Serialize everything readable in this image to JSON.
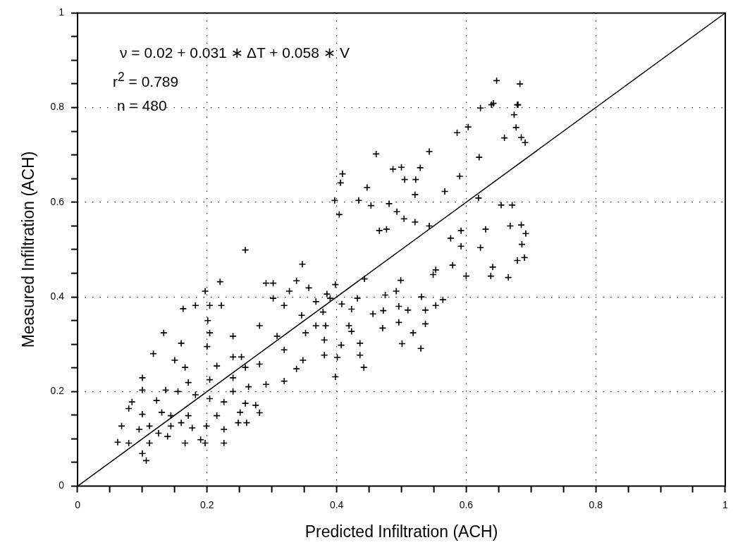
{
  "chart_data": {
    "type": "scatter",
    "xlabel": "Predicted Infiltration (ACH)",
    "ylabel": "Measured Infiltration (ACH)",
    "annotations": [
      "ν = 0.02 + 0.031 ∗ ΔT + 0.058 ∗ V",
      "r$^{2}$ = 0.789",
      "n = 480"
    ],
    "xlim": [
      0,
      1
    ],
    "ylim": [
      0,
      1
    ],
    "xticks": [
      0,
      {
        "value": 0.05,
        "label": null
      },
      {
        "value": 0.1,
        "label": null
      },
      {
        "value": 0.15,
        "label": null
      },
      0.2,
      {
        "value": 0.25,
        "label": null
      },
      {
        "value": 0.3,
        "label": null
      },
      {
        "value": 0.35,
        "label": null
      },
      0.4,
      {
        "value": 0.45,
        "label": null
      },
      {
        "value": 0.5,
        "label": null
      },
      {
        "value": 0.55,
        "label": null
      },
      0.6,
      {
        "value": 0.65,
        "label": null
      },
      {
        "value": 0.7,
        "label": null
      },
      {
        "value": 0.75,
        "label": null
      },
      0.8,
      {
        "value": 0.85,
        "label": null
      },
      {
        "value": 0.9,
        "label": null
      },
      {
        "value": 0.95,
        "label": null
      },
      1
    ],
    "yticks": [
      0,
      {
        "value": 0.05,
        "label": null
      },
      {
        "value": 0.1,
        "label": null
      },
      {
        "value": 0.15,
        "label": null
      },
      0.2,
      {
        "value": 0.25,
        "label": null
      },
      {
        "value": 0.3,
        "label": null
      },
      {
        "value": 0.35,
        "label": null
      },
      0.4,
      {
        "value": 0.45,
        "label": null
      },
      {
        "value": 0.5,
        "label": null
      },
      {
        "value": 0.55,
        "label": null
      },
      0.6,
      {
        "value": 0.65,
        "label": null
      },
      {
        "value": 0.7,
        "label": null
      },
      {
        "value": 0.75,
        "label": null
      },
      0.8,
      {
        "value": 0.85,
        "label": null
      },
      {
        "value": 0.9,
        "label": null
      },
      {
        "value": 0.95,
        "label": null
      },
      1
    ],
    "grid": true,
    "marker": "cross",
    "series": [
      {
        "color": "#000000",
        "x": [
          0.647,
          0.683,
          0.642,
          0.68,
          0.639,
          0.679,
          0.622,
          0.603,
          0.586,
          0.674,
          0.677,
          0.659,
          0.685,
          0.691,
          0.543,
          0.461,
          0.529,
          0.62,
          0.5,
          0.487,
          0.505,
          0.522,
          0.59,
          0.409,
          0.406,
          0.567,
          0.447,
          0.521,
          0.619,
          0.654,
          0.671,
          0.397,
          0.404,
          0.434,
          0.453,
          0.481,
          0.493,
          0.504,
          0.477,
          0.466,
          0.521,
          0.543,
          0.576,
          0.63,
          0.592,
          0.668,
          0.685,
          0.692,
          0.592,
          0.622,
          0.686,
          0.679,
          0.69,
          0.579,
          0.641,
          0.638,
          0.665,
          0.553,
          0.6,
          0.549,
          0.499,
          0.443,
          0.492,
          0.475,
          0.432,
          0.423,
          0.456,
          0.472,
          0.531,
          0.564,
          0.51,
          0.537,
          0.553,
          0.496,
          0.518,
          0.537,
          0.53,
          0.471,
          0.501,
          0.496,
          0.423,
          0.407,
          0.419,
          0.383,
          0.381,
          0.401,
          0.436,
          0.442,
          0.436,
          0.381,
          0.398,
          0.368,
          0.352,
          0.379,
          0.408,
          0.39,
          0.398,
          0.385,
          0.346,
          0.319,
          0.302,
          0.302,
          0.291,
          0.259,
          0.347,
          0.338,
          0.357,
          0.368,
          0.327,
          0.308,
          0.319,
          0.348,
          0.338,
          0.319,
          0.281,
          0.24,
          0.204,
          0.222,
          0.22,
          0.197,
          0.182,
          0.201,
          0.204,
          0.163,
          0.133,
          0.16,
          0.2,
          0.24,
          0.253,
          0.281,
          0.259,
          0.215,
          0.166,
          0.15,
          0.117,
          0.1,
          0.171,
          0.204,
          0.24,
          0.264,
          0.291,
          0.136,
          0.122,
          0.1,
          0.084,
          0.155,
          0.182,
          0.204,
          0.24,
          0.226,
          0.259,
          0.275,
          0.251,
          0.215,
          0.199,
          0.171,
          0.144,
          0.16,
          0.13,
          0.1,
          0.079,
          0.095,
          0.068,
          0.111,
          0.125,
          0.139,
          0.111,
          0.1,
          0.106,
          0.079,
          0.062,
          0.177,
          0.226,
          0.248,
          0.19,
          0.226,
          0.197,
          0.166,
          0.144,
          0.281,
          0.261
        ],
        "values": [
          0.857,
          0.85,
          0.809,
          0.806,
          0.806,
          0.806,
          0.799,
          0.759,
          0.747,
          0.785,
          0.758,
          0.736,
          0.737,
          0.726,
          0.707,
          0.702,
          0.673,
          0.695,
          0.674,
          0.67,
          0.648,
          0.648,
          0.655,
          0.66,
          0.641,
          0.623,
          0.631,
          0.616,
          0.609,
          0.594,
          0.594,
          0.604,
          0.574,
          0.604,
          0.593,
          0.597,
          0.58,
          0.565,
          0.543,
          0.54,
          0.558,
          0.55,
          0.524,
          0.543,
          0.54,
          0.55,
          0.552,
          0.534,
          0.507,
          0.504,
          0.511,
          0.477,
          0.483,
          0.467,
          0.463,
          0.444,
          0.441,
          0.457,
          0.444,
          0.447,
          0.435,
          0.438,
          0.412,
          0.404,
          0.397,
          0.374,
          0.364,
          0.371,
          0.4,
          0.394,
          0.372,
          0.372,
          0.382,
          0.346,
          0.324,
          0.343,
          0.291,
          0.334,
          0.301,
          0.38,
          0.327,
          0.298,
          0.339,
          0.339,
          0.309,
          0.272,
          0.277,
          0.251,
          0.302,
          0.277,
          0.231,
          0.339,
          0.324,
          0.368,
          0.385,
          0.397,
          0.426,
          0.406,
          0.361,
          0.382,
          0.429,
          0.397,
          0.429,
          0.499,
          0.469,
          0.434,
          0.419,
          0.39,
          0.412,
          0.317,
          0.288,
          0.266,
          0.248,
          0.222,
          0.339,
          0.317,
          0.324,
          0.382,
          0.432,
          0.412,
          0.382,
          0.35,
          0.382,
          0.375,
          0.324,
          0.302,
          0.295,
          0.273,
          0.273,
          0.258,
          0.251,
          0.254,
          0.251,
          0.266,
          0.28,
          0.229,
          0.219,
          0.225,
          0.229,
          0.21,
          0.215,
          0.203,
          0.181,
          0.203,
          0.178,
          0.2,
          0.193,
          0.185,
          0.2,
          0.178,
          0.175,
          0.171,
          0.156,
          0.149,
          0.127,
          0.149,
          0.149,
          0.134,
          0.156,
          0.152,
          0.164,
          0.12,
          0.127,
          0.127,
          0.112,
          0.105,
          0.091,
          0.069,
          0.054,
          0.091,
          0.093,
          0.123,
          0.12,
          0.134,
          0.098,
          0.091,
          0.091,
          0.091,
          0.127,
          0.155,
          0.134
        ]
      },
      {
        "type": "line",
        "color": "#000000",
        "x": [
          0,
          1
        ],
        "values": [
          0,
          1
        ],
        "marker": "none",
        "line_style": "solid"
      }
    ]
  }
}
